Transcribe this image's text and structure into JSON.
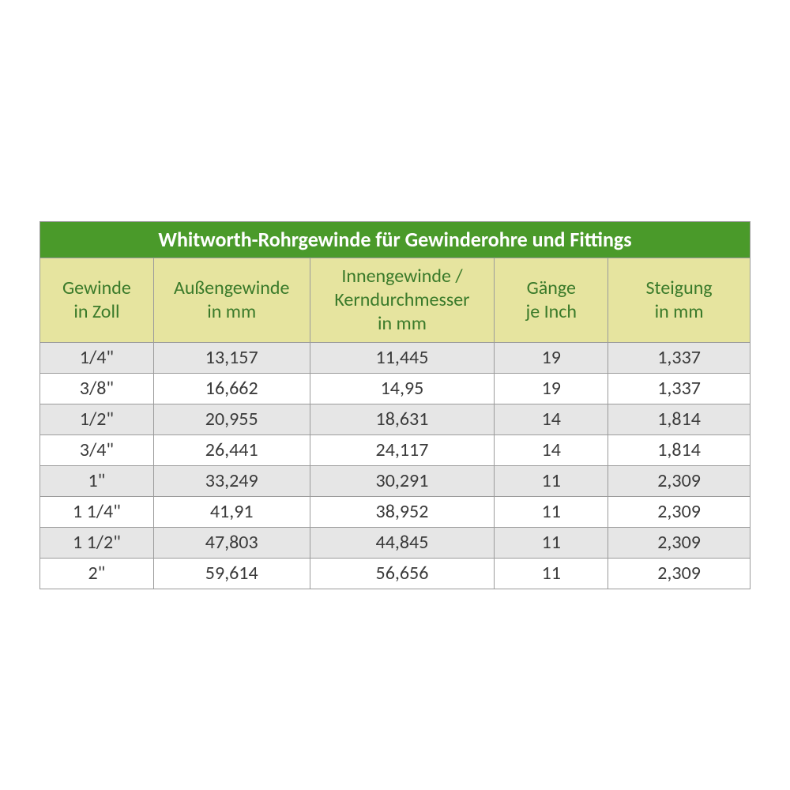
{
  "table": {
    "type": "table",
    "title": "Whitworth-Rohrgewinde für Gewinderohre und Fittings",
    "title_bg": "#4a9a2a",
    "title_color": "#ffffff",
    "title_fontsize": 26,
    "header_bg": "#e6e49f",
    "header_color": "#3a7a2a",
    "header_fontsize": 24,
    "row_odd_bg": "#e6e6e6",
    "row_even_bg": "#ffffff",
    "cell_color": "#3a3a3a",
    "cell_fontsize": 24,
    "border_color": "#9b9b9b",
    "column_widths_pct": [
      16,
      22,
      26,
      16,
      20
    ],
    "columns": [
      "Gewinde in Zoll",
      "Außengewinde in mm",
      "Innengewinde / Kerndurchmesser in mm",
      "Gänge je Inch",
      "Steigung in mm"
    ],
    "columns_multiline": [
      [
        "Gewinde",
        "in Zoll"
      ],
      [
        "Außengewinde",
        "in mm"
      ],
      [
        "Innengewinde /",
        "Kerndurchmesser",
        "in mm"
      ],
      [
        "Gänge",
        "je Inch"
      ],
      [
        "Steigung",
        "in mm"
      ]
    ],
    "rows": [
      [
        "1/4\"",
        "13,157",
        "11,445",
        "19",
        "1,337"
      ],
      [
        "3/8\"",
        "16,662",
        "14,95",
        "19",
        "1,337"
      ],
      [
        "1/2\"",
        "20,955",
        "18,631",
        "14",
        "1,814"
      ],
      [
        "3/4\"",
        "26,441",
        "24,117",
        "14",
        "1,814"
      ],
      [
        "1\"",
        "33,249",
        "30,291",
        "11",
        "2,309"
      ],
      [
        "1 1/4\"",
        "41,91",
        "38,952",
        "11",
        "2,309"
      ],
      [
        "1 1/2\"",
        "47,803",
        "44,845",
        "11",
        "2,309"
      ],
      [
        "2\"",
        "59,614",
        "56,656",
        "11",
        "2,309"
      ]
    ]
  }
}
